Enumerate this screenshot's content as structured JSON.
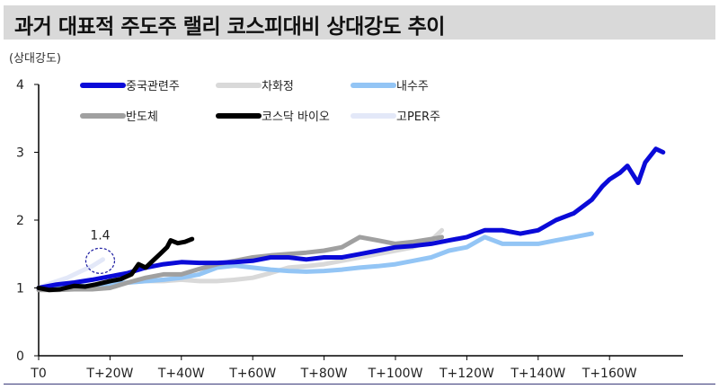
{
  "chart_data": {
    "type": "line",
    "title": "과거 대표적 주도주 랠리 코스피대비 상대강도 추이",
    "ylabel": "(상대강도)",
    "xlabel": "",
    "ylim": [
      0,
      4
    ],
    "xlim": [
      0,
      178
    ],
    "yticks": [
      0,
      1,
      2,
      3,
      4
    ],
    "xticks": [
      {
        "v": 0,
        "label": "T0"
      },
      {
        "v": 20,
        "label": "T+20W"
      },
      {
        "v": 40,
        "label": "T+40W"
      },
      {
        "v": 60,
        "label": "T+60W"
      },
      {
        "v": 80,
        "label": "T+80W"
      },
      {
        "v": 100,
        "label": "T+100W"
      },
      {
        "v": 120,
        "label": "T+120W"
      },
      {
        "v": 140,
        "label": "T+140W"
      },
      {
        "v": 160,
        "label": "T+160W"
      }
    ],
    "legend_position": "top",
    "series": [
      {
        "name": "차화정",
        "color": "#d9d9d9",
        "x": [
          0,
          5,
          10,
          15,
          20,
          25,
          30,
          35,
          40,
          45,
          50,
          55,
          60,
          65,
          70,
          75,
          80,
          85,
          90,
          95,
          100,
          105,
          110,
          113
        ],
        "y": [
          1,
          0.98,
          1.0,
          1.02,
          1.05,
          1.08,
          1.1,
          1.1,
          1.12,
          1.1,
          1.1,
          1.12,
          1.15,
          1.22,
          1.3,
          1.32,
          1.35,
          1.4,
          1.45,
          1.5,
          1.55,
          1.6,
          1.7,
          1.85
        ]
      },
      {
        "name": "내수주",
        "color": "#93c5f5",
        "x": [
          0,
          10,
          20,
          25,
          30,
          35,
          40,
          45,
          50,
          55,
          60,
          65,
          70,
          75,
          80,
          85,
          90,
          95,
          100,
          105,
          110,
          115,
          120,
          125,
          130,
          135,
          140,
          145,
          150,
          155
        ],
        "y": [
          1,
          1.02,
          1.05,
          1.08,
          1.1,
          1.12,
          1.15,
          1.2,
          1.3,
          1.33,
          1.3,
          1.27,
          1.25,
          1.24,
          1.25,
          1.27,
          1.3,
          1.32,
          1.35,
          1.4,
          1.45,
          1.55,
          1.6,
          1.75,
          1.65,
          1.65,
          1.65,
          1.7,
          1.75,
          1.8
        ]
      },
      {
        "name": "반도체",
        "color": "#a0a0a0",
        "x": [
          0,
          5,
          10,
          15,
          20,
          25,
          30,
          35,
          40,
          45,
          50,
          55,
          60,
          65,
          70,
          75,
          80,
          85,
          90,
          95,
          100,
          105,
          110,
          113
        ],
        "y": [
          0.97,
          0.97,
          0.98,
          0.98,
          1.0,
          1.08,
          1.15,
          1.2,
          1.2,
          1.28,
          1.35,
          1.4,
          1.45,
          1.48,
          1.5,
          1.52,
          1.55,
          1.6,
          1.75,
          1.7,
          1.65,
          1.68,
          1.72,
          1.75
        ]
      },
      {
        "name": "고PER주",
        "color": "#e3e8f8",
        "x": [
          0,
          4,
          8,
          12,
          15,
          18
        ],
        "y": [
          1,
          1.08,
          1.15,
          1.25,
          1.32,
          1.42
        ]
      },
      {
        "name": "중국관련주",
        "color": "#0a0ad8",
        "x": [
          0,
          5,
          10,
          15,
          20,
          25,
          30,
          35,
          40,
          45,
          50,
          55,
          60,
          65,
          70,
          75,
          80,
          85,
          90,
          95,
          100,
          105,
          110,
          115,
          120,
          125,
          130,
          135,
          140,
          145,
          150,
          155,
          158,
          160,
          163,
          165,
          168,
          170,
          173,
          175
        ],
        "y": [
          1,
          1.05,
          1.08,
          1.12,
          1.17,
          1.22,
          1.3,
          1.35,
          1.38,
          1.37,
          1.37,
          1.38,
          1.4,
          1.45,
          1.45,
          1.42,
          1.45,
          1.45,
          1.5,
          1.55,
          1.6,
          1.62,
          1.65,
          1.7,
          1.75,
          1.85,
          1.85,
          1.8,
          1.85,
          2.0,
          2.1,
          2.3,
          2.5,
          2.6,
          2.7,
          2.8,
          2.55,
          2.85,
          3.05,
          3.0
        ]
      },
      {
        "name": "코스닥 바이오",
        "color": "#000000",
        "x": [
          0,
          3,
          6,
          10,
          13,
          16,
          20,
          23,
          26,
          28,
          30,
          32,
          34,
          36,
          37,
          39,
          41,
          43
        ],
        "y": [
          1,
          0.97,
          0.98,
          1.03,
          1.02,
          1.05,
          1.1,
          1.13,
          1.2,
          1.35,
          1.3,
          1.4,
          1.5,
          1.6,
          1.7,
          1.66,
          1.68,
          1.72
        ]
      }
    ],
    "legend": [
      "중국관련주",
      "차화정",
      "내수주",
      "반도체",
      "코스닥 바이오",
      "고PER주"
    ],
    "annotation": {
      "text": "1.4",
      "x": 18,
      "y": 1.4
    }
  }
}
